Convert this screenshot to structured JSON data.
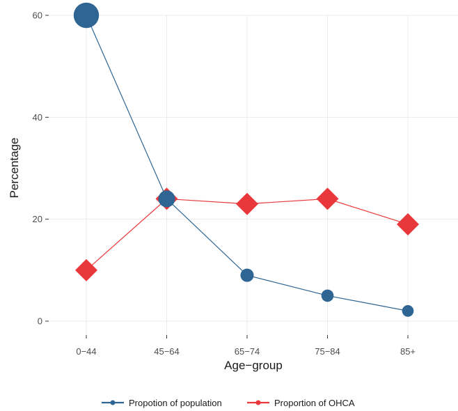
{
  "chart_data": {
    "type": "line",
    "title": "",
    "xlabel": "Age−group",
    "ylabel": "Percentage",
    "categories": [
      "0−44",
      "45−64",
      "65−74",
      "75−84",
      "85+"
    ],
    "ylim": [
      0,
      60
    ],
    "yticks": [
      0,
      20,
      40,
      60
    ],
    "grid": true,
    "legend_position": "bottom",
    "series": [
      {
        "name": "Propotion of population",
        "marker": "circle",
        "color": "#2e6593",
        "values": [
          60,
          24,
          9,
          5,
          2
        ]
      },
      {
        "name": "Proportion of OHCA",
        "marker": "diamond",
        "color": "#e8383b",
        "values": [
          10,
          24,
          23,
          24,
          19
        ]
      }
    ]
  }
}
